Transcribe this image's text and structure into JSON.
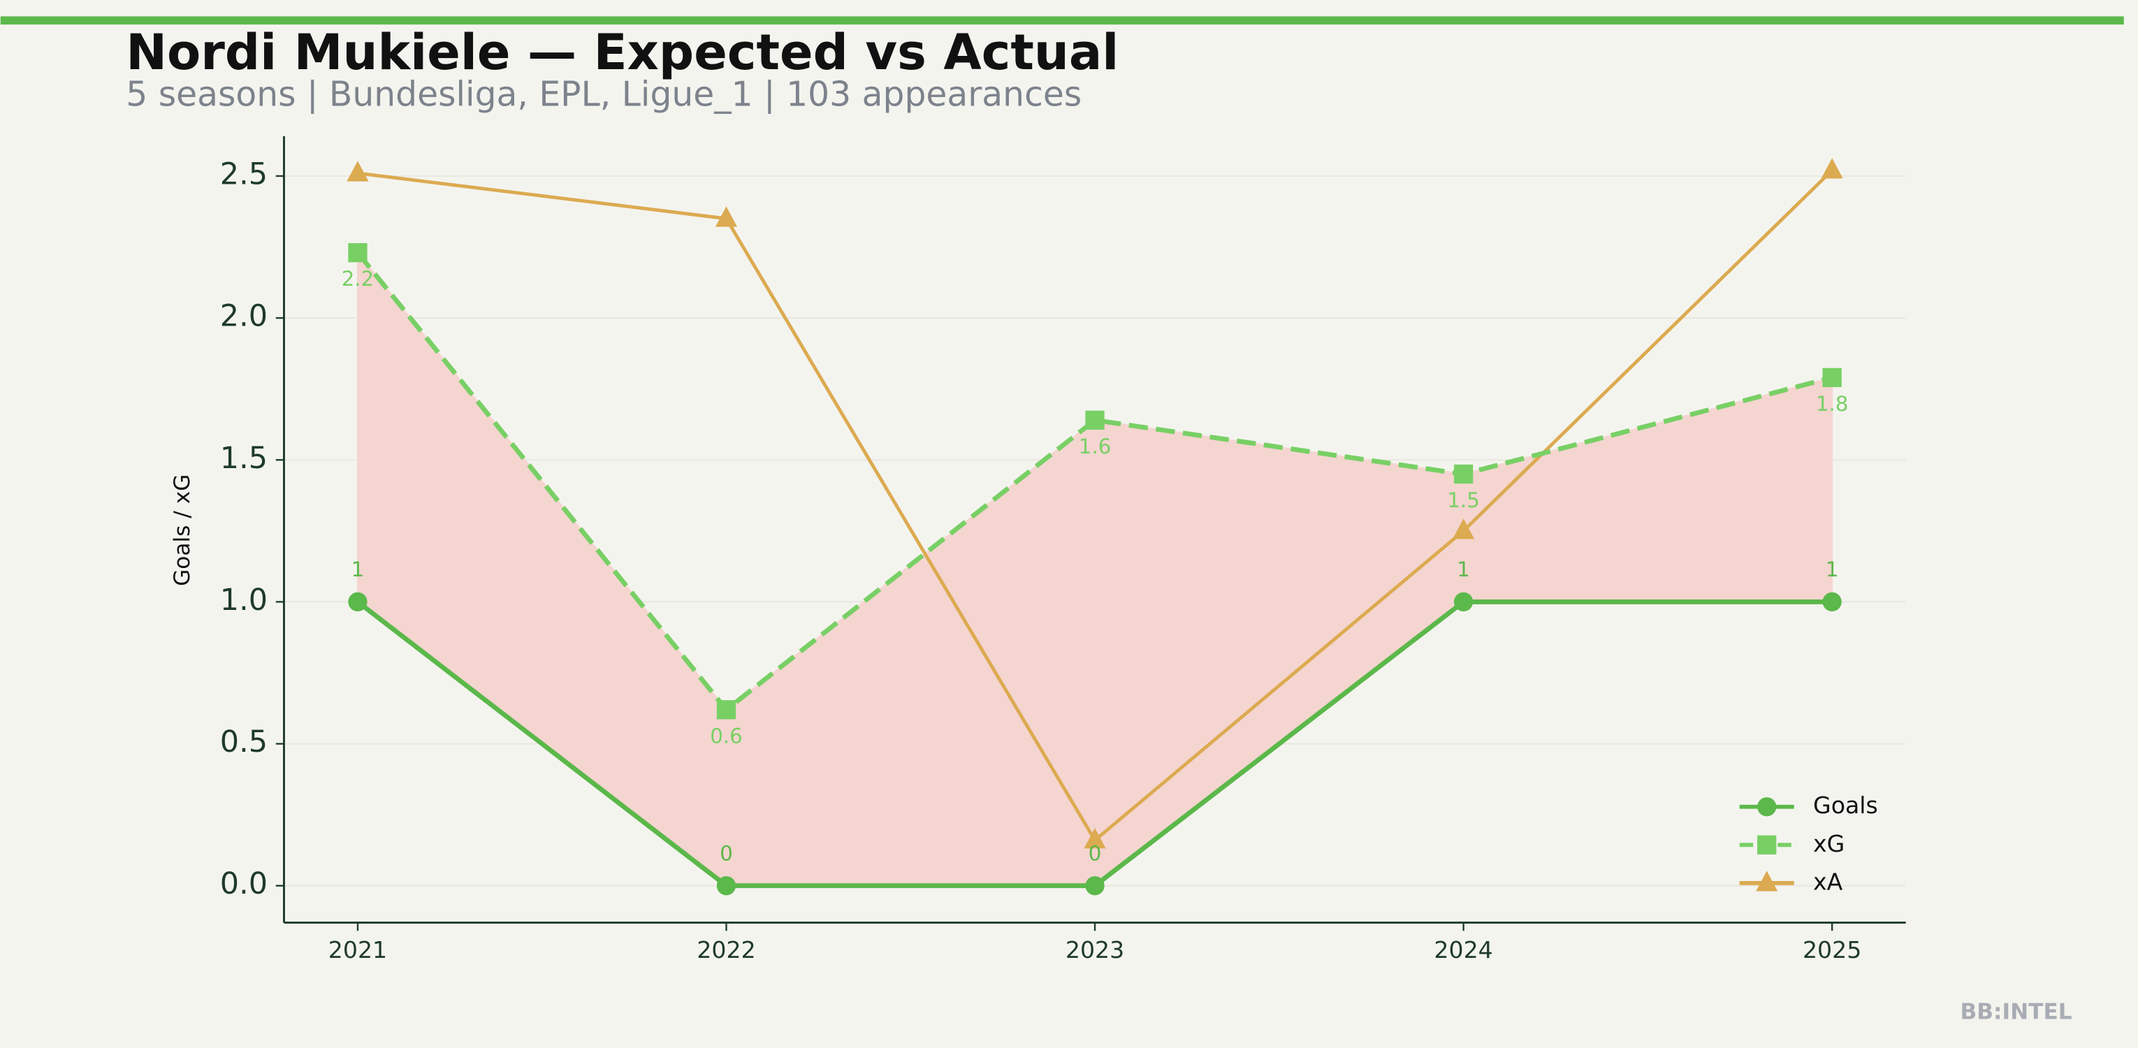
{
  "chart_data": {
    "type": "line",
    "title": "Nordi Mukiele — Expected vs Actual",
    "subtitle": "5 seasons | Bundesliga, EPL, Ligue_1 | 103 appearances",
    "y_label": "Goals / xG",
    "watermark": "BB:INTEL",
    "x": [
      2021,
      2022,
      2023,
      2024,
      2025
    ],
    "xlim": [
      2020.8,
      2025.2
    ],
    "xticks": [
      2021,
      2022,
      2023,
      2024,
      2025
    ],
    "ylim": [
      -0.13,
      2.64
    ],
    "yticks": [
      {
        "value": 0,
        "label": "0.0"
      },
      {
        "value": 0.5,
        "label": "0.5"
      },
      {
        "value": 1,
        "label": "1.0"
      },
      {
        "value": 1.5,
        "label": "1.5"
      },
      {
        "value": 2,
        "label": "2.0"
      },
      {
        "value": 2.5,
        "label": "2.5"
      }
    ],
    "grid": true,
    "legend": "lower right",
    "fill_color": "#f5d5d0",
    "series": [
      {
        "name": "Goals",
        "color": "#5bb84a",
        "marker": "circle",
        "dash": false,
        "values": [
          1,
          0,
          0,
          1,
          1
        ],
        "labels_position": "above"
      },
      {
        "name": "xG",
        "color": "#78d065",
        "marker": "square",
        "dash": true,
        "values": [
          2.23,
          0.62,
          1.64,
          1.45,
          1.79
        ],
        "value_labels": [
          "2.2",
          "0.6",
          "1.6",
          "1.5",
          "1.8"
        ],
        "labels_position": "below"
      },
      {
        "name": "xA",
        "color": "#dcaa50",
        "marker": "triangle",
        "dash": false,
        "values": [
          2.51,
          2.35,
          0.16,
          1.25,
          2.52
        ]
      }
    ]
  }
}
